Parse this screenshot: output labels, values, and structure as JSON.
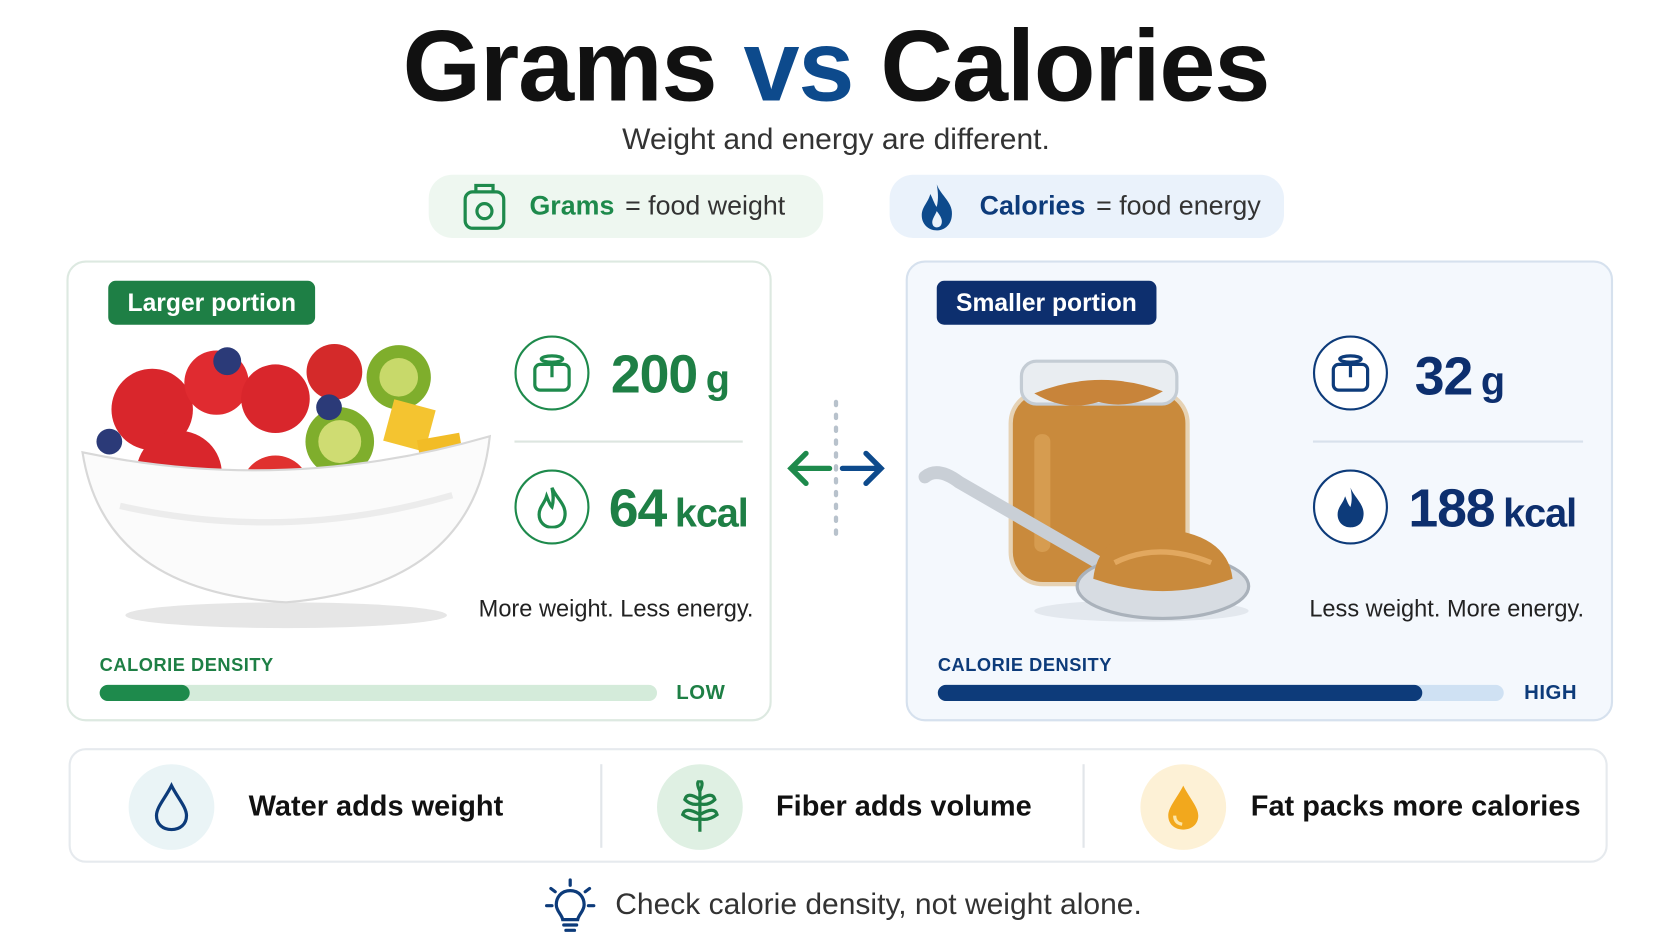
{
  "header": {
    "title_parts": [
      "Grams",
      "vs",
      "Calories"
    ],
    "subtitle": "Weight and energy are different."
  },
  "legend": [
    {
      "term": "Grams",
      "definition": "= food weight"
    },
    {
      "term": "Calories",
      "definition": "= food energy"
    }
  ],
  "cards": [
    {
      "badge": "Larger portion",
      "weight": {
        "value": 200,
        "unit": "g"
      },
      "energy": {
        "value": 64,
        "unit": "kcal"
      },
      "caption": "More weight. Less energy.",
      "density_label": "CALORIE DENSITY",
      "density_level": "LOW"
    },
    {
      "badge": "Smaller portion",
      "weight": {
        "value": 32,
        "unit": "g"
      },
      "energy": {
        "value": 188,
        "unit": "kcal"
      },
      "caption": "Less weight. More energy.",
      "density_label": "CALORIE DENSITY",
      "density_level": "HIGH"
    }
  ],
  "facts": [
    "Water adds weight",
    "Fiber adds volume",
    "Fat packs more calories"
  ],
  "tip": "Check calorie density, not weight alone."
}
